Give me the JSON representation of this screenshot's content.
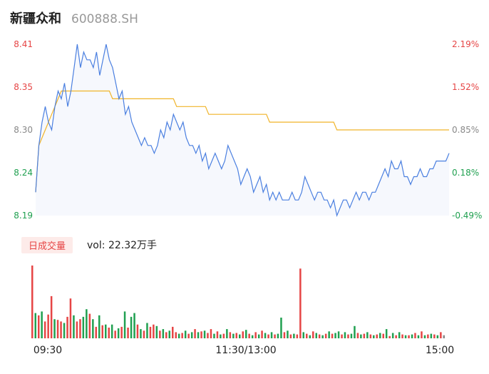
{
  "header": {
    "name": "新疆众和",
    "code": "600888.SH"
  },
  "volume_panel": {
    "tab_label": "日成交量",
    "vol_label": "vol:",
    "vol_value": "22.32万手"
  },
  "colors": {
    "price_line": "#4a7fe0",
    "avg_line": "#f0b429",
    "up": "#e64545",
    "down": "#20a050",
    "neutral": "#888888"
  },
  "chart_data": [
    {
      "type": "line",
      "y_ticks_left": [
        "8.41",
        "8.35",
        "8.30",
        "8.24",
        "8.19"
      ],
      "y_ticks_right": [
        "2.19%",
        "1.52%",
        "0.85%",
        "0.18%",
        "-0.49%"
      ],
      "ylim": [
        8.19,
        8.41
      ],
      "prev_close": 8.23,
      "x_ticks": [
        "09:30",
        "11:30/13:00",
        "15:00"
      ],
      "series": [
        {
          "values": [
            8.22,
            8.28,
            8.31,
            8.33,
            8.31,
            8.3,
            8.33,
            8.35,
            8.34,
            8.36,
            8.33,
            8.35,
            8.38,
            8.41,
            8.38,
            8.4,
            8.39,
            8.39,
            8.38,
            8.4,
            8.37,
            8.39,
            8.41,
            8.39,
            8.38,
            8.36,
            8.34,
            8.35,
            8.32,
            8.33,
            8.31,
            8.3,
            8.29,
            8.28,
            8.29,
            8.28,
            8.28,
            8.27,
            8.28,
            8.3,
            8.29,
            8.31,
            8.3,
            8.32,
            8.31,
            8.3,
            8.31,
            8.29,
            8.28,
            8.28,
            8.27,
            8.28,
            8.26,
            8.27,
            8.25,
            8.26,
            8.27,
            8.26,
            8.25,
            8.26,
            8.28,
            8.27,
            8.26,
            8.25,
            8.23,
            8.24,
            8.25,
            8.24,
            8.22,
            8.23,
            8.24,
            8.22,
            8.23,
            8.21,
            8.22,
            8.21,
            8.22,
            8.21,
            8.21,
            8.21,
            8.22,
            8.21,
            8.21,
            8.22,
            8.24,
            8.23,
            8.22,
            8.21,
            8.22,
            8.22,
            8.21,
            8.21,
            8.2,
            8.21,
            8.19,
            8.2,
            8.21,
            8.21,
            8.2,
            8.21,
            8.22,
            8.21,
            8.22,
            8.22,
            8.21,
            8.22,
            8.22,
            8.23,
            8.24,
            8.25,
            8.24,
            8.26,
            8.25,
            8.25,
            8.26,
            8.24,
            8.24,
            8.23,
            8.24,
            8.24,
            8.25,
            8.24,
            8.24,
            8.25,
            8.25,
            8.26,
            8.26,
            8.26,
            8.26,
            8.27
          ]
        },
        {
          "values": [
            8.22,
            8.28,
            8.29,
            8.3,
            8.31,
            8.32,
            8.33,
            8.34,
            8.35,
            8.35,
            8.35,
            8.35,
            8.35,
            8.35,
            8.35,
            8.35,
            8.35,
            8.35,
            8.35,
            8.35,
            8.35,
            8.35,
            8.35,
            8.35,
            8.34,
            8.34,
            8.34,
            8.34,
            8.34,
            8.34,
            8.34,
            8.34,
            8.34,
            8.34,
            8.34,
            8.34,
            8.34,
            8.34,
            8.34,
            8.34,
            8.34,
            8.34,
            8.34,
            8.34,
            8.33,
            8.33,
            8.33,
            8.33,
            8.33,
            8.33,
            8.33,
            8.33,
            8.33,
            8.33,
            8.32,
            8.32,
            8.32,
            8.32,
            8.32,
            8.32,
            8.32,
            8.32,
            8.32,
            8.32,
            8.32,
            8.32,
            8.32,
            8.32,
            8.32,
            8.32,
            8.32,
            8.32,
            8.32,
            8.31,
            8.31,
            8.31,
            8.31,
            8.31,
            8.31,
            8.31,
            8.31,
            8.31,
            8.31,
            8.31,
            8.31,
            8.31,
            8.31,
            8.31,
            8.31,
            8.31,
            8.31,
            8.31,
            8.31,
            8.31,
            8.3,
            8.3,
            8.3,
            8.3,
            8.3,
            8.3,
            8.3,
            8.3,
            8.3,
            8.3,
            8.3,
            8.3,
            8.3,
            8.3,
            8.3,
            8.3,
            8.3,
            8.3,
            8.3,
            8.3,
            8.3,
            8.3,
            8.3,
            8.3,
            8.3,
            8.3,
            8.3,
            8.3,
            8.3,
            8.3,
            8.3,
            8.3,
            8.3,
            8.3,
            8.3,
            8.3
          ]
        }
      ]
    },
    {
      "type": "bar",
      "values": [
        95,
        33,
        30,
        35,
        22,
        31,
        55,
        25,
        24,
        22,
        20,
        28,
        52,
        30,
        22,
        25,
        28,
        38,
        32,
        25,
        15,
        30,
        17,
        18,
        14,
        18,
        10,
        13,
        15,
        35,
        14,
        28,
        33,
        18,
        12,
        10,
        20,
        15,
        18,
        16,
        10,
        12,
        8,
        10,
        15,
        8,
        6,
        7,
        10,
        6,
        8,
        12,
        8,
        9,
        10,
        7,
        12,
        6,
        9,
        5,
        6,
        12,
        8,
        6,
        7,
        5,
        9,
        11,
        6,
        4,
        8,
        5,
        10,
        7,
        5,
        8,
        5,
        6,
        27,
        8,
        10,
        5,
        6,
        5,
        91,
        8,
        6,
        4,
        9,
        7,
        5,
        4,
        6,
        9,
        6,
        7,
        9,
        5,
        8,
        5,
        6,
        16,
        7,
        5,
        6,
        8,
        5,
        4,
        5,
        7,
        6,
        12,
        3,
        7,
        4,
        8,
        5,
        4,
        4,
        5,
        7,
        4,
        9,
        4,
        5,
        6,
        5,
        4,
        8,
        4
      ],
      "colors": [
        "up",
        "down",
        "up",
        "down",
        "up",
        "up",
        "up",
        "down",
        "up",
        "up",
        "down",
        "up",
        "up",
        "down",
        "up",
        "up",
        "down",
        "down",
        "up",
        "down",
        "up",
        "down",
        "up",
        "down",
        "up",
        "down",
        "up",
        "down",
        "up",
        "down",
        "up",
        "down",
        "down",
        "up",
        "down",
        "up",
        "down",
        "up",
        "up",
        "down",
        "up",
        "down",
        "up",
        "down",
        "up",
        "up",
        "down",
        "up",
        "down",
        "up",
        "down",
        "up",
        "down",
        "up",
        "down",
        "up",
        "up",
        "down",
        "up",
        "down",
        "up",
        "down",
        "up",
        "down",
        "up",
        "down",
        "up",
        "down",
        "up",
        "down",
        "up",
        "down",
        "up",
        "down",
        "up",
        "down",
        "up",
        "down",
        "down",
        "up",
        "down",
        "up",
        "down",
        "up",
        "up",
        "down",
        "up",
        "down",
        "up",
        "down",
        "up",
        "down",
        "up",
        "down",
        "up",
        "down",
        "down",
        "up",
        "down",
        "up",
        "down",
        "down",
        "up",
        "down",
        "up",
        "down",
        "up",
        "down",
        "up",
        "down",
        "up",
        "down",
        "up",
        "down",
        "up",
        "down",
        "up",
        "down",
        "up",
        "down",
        "up",
        "down",
        "up",
        "down",
        "up",
        "down",
        "up",
        "down",
        "up",
        "neutral"
      ]
    }
  ]
}
